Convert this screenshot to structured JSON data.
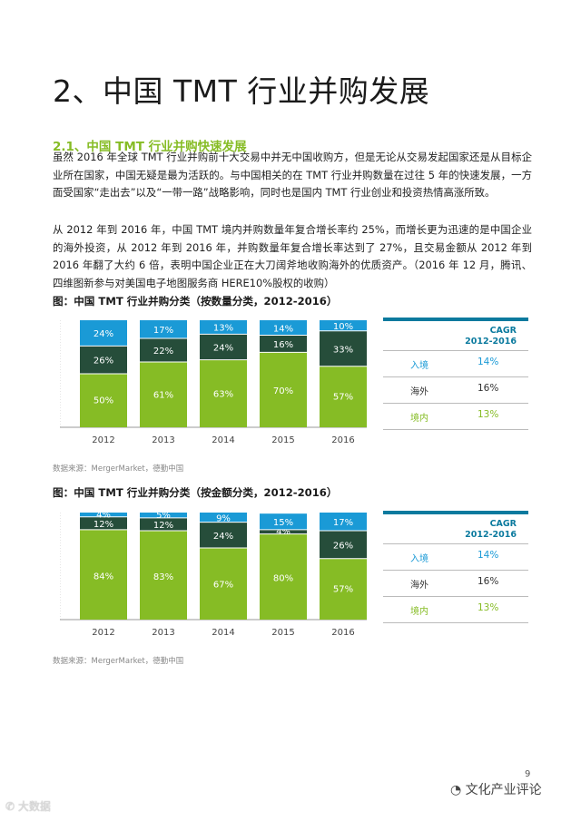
{
  "section_title": "2、中国 TMT 行业并购发展",
  "subsection_title": "2.1、中国 TMT 行业并购快速发展",
  "paragraphs": [
    "虽然 2016 年全球 TMT 行业并购前十大交易中并无中国收购方，但是无论从交易发起国家还是从目标企业所在国家，中国无疑是最为活跃的。与中国相关的在 TMT 行业并购数量在过往 5 年的快速发展，一方面受国家“走出去”以及“一带一路”战略影响，同时也是国内 TMT 行业创业和投资热情高涨所致。",
    "从 2012 年到 2016 年，中国 TMT 境内并购数量年复合增长率约 25%，而增长更为迅速的是中国企业的海外投资，从 2012 年到 2016 年，并购数量年复合增长率达到了 27%，且交易金额从 2012 年到 2016 年翻了大约 6 倍，表明中国企业正在大刀阔斧地收购海外的优质资产。（2016 年 12 月，腾讯、四维图新参与对美国电子地图服务商 HERE10%股权的收购）"
  ],
  "colors": {
    "inbound": "#1a9ad6",
    "outbound": "#264d3a",
    "domestic": "#86bc25",
    "accent": "#0b7a9e"
  },
  "chart_data": [
    {
      "type": "bar",
      "stacked": true,
      "percent": true,
      "title": "图：中国 TMT 行业并购分类（按数量分类，2012-2016）",
      "categories": [
        "2012",
        "2013",
        "2014",
        "2015",
        "2016"
      ],
      "series": [
        {
          "name": "境内",
          "values": [
            50,
            61,
            63,
            70,
            57
          ]
        },
        {
          "name": "海外",
          "values": [
            26,
            22,
            24,
            16,
            33
          ]
        },
        {
          "name": "入境",
          "values": [
            24,
            17,
            13,
            14,
            10
          ]
        }
      ],
      "ylim": [
        0,
        100
      ],
      "source": "数据来源：MergerMarket，德勤中国",
      "cagr": {
        "header": [
          "CAGR",
          "2012-2016"
        ],
        "rows": [
          {
            "label": "入境",
            "value": "14%"
          },
          {
            "label": "海外",
            "value": "16%"
          },
          {
            "label": "境内",
            "value": "13%"
          }
        ]
      }
    },
    {
      "type": "bar",
      "stacked": true,
      "percent": true,
      "title": "图：中国 TMT 行业并购分类（按金额分类，2012-2016）",
      "categories": [
        "2012",
        "2013",
        "2014",
        "2015",
        "2016"
      ],
      "series": [
        {
          "name": "境内",
          "values": [
            84,
            83,
            67,
            80,
            57
          ]
        },
        {
          "name": "海外",
          "values": [
            12,
            12,
            24,
            4,
            26
          ]
        },
        {
          "name": "入境",
          "values": [
            4,
            5,
            9,
            15,
            17
          ]
        }
      ],
      "ylim": [
        0,
        100
      ],
      "source": "数据来源：MergerMarket，德勤中国",
      "cagr": {
        "header": [
          "CAGR",
          "2012-2016"
        ],
        "rows": [
          {
            "label": "入境",
            "value": "14%"
          },
          {
            "label": "海外",
            "value": "16%"
          },
          {
            "label": "境内",
            "value": "13%"
          }
        ]
      }
    }
  ],
  "page_number": "9",
  "watermark_right": "文化产业评论",
  "watermark_left": "大数据"
}
